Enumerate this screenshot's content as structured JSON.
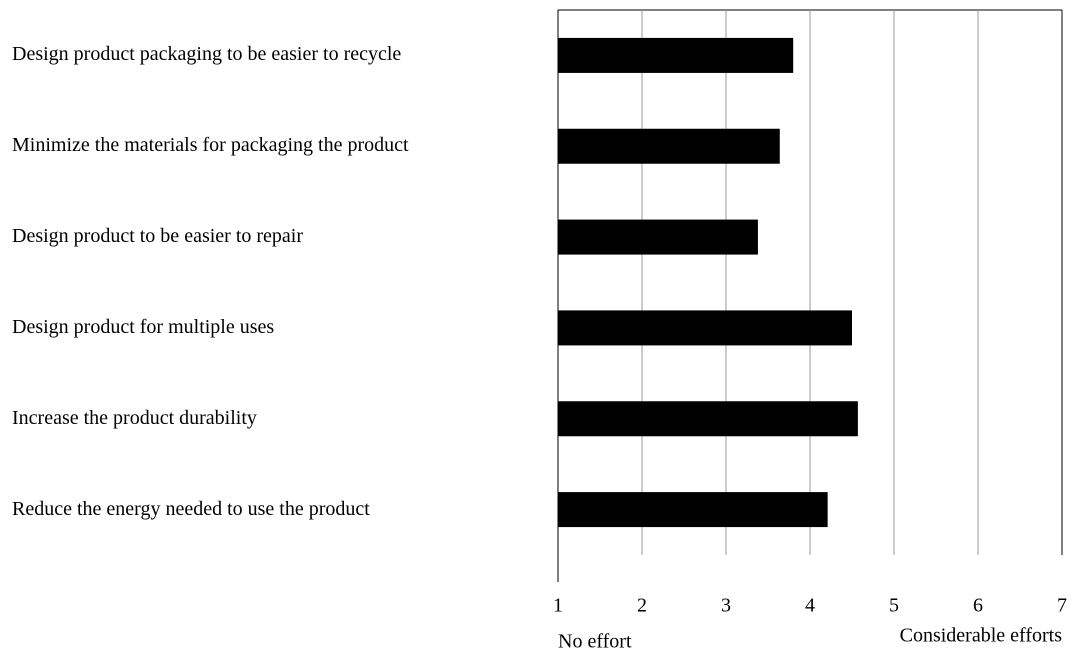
{
  "chart_data": {
    "type": "bar",
    "orientation": "horizontal",
    "categories": [
      "Design product packaging to be easier to recycle",
      "Minimize the materials for packaging the product",
      "Design product to be easier to repair",
      "Design product for multiple uses",
      "Increase the product durability",
      "Reduce the energy needed to use the product"
    ],
    "values": [
      3.8,
      3.64,
      3.38,
      4.5,
      4.57,
      4.21
    ],
    "color": "#000000",
    "xlim": [
      1,
      7
    ],
    "xticks": [
      1,
      2,
      3,
      4,
      5,
      6,
      7
    ],
    "grid": true,
    "xlabel_left": "No effort",
    "xlabel_right": "Considerable efforts"
  }
}
